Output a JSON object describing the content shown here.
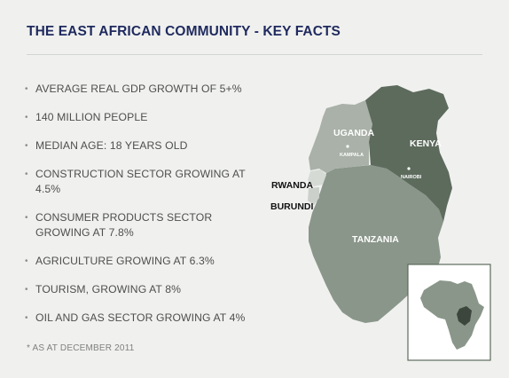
{
  "title": "THE EAST AFRICAN COMMUNITY - KEY FACTS",
  "facts": [
    "AVERAGE REAL GDP GROWTH OF 5+%",
    "140 MILLION PEOPLE",
    "MEDIAN AGE: 18 YEARS OLD",
    "CONSTRUCTION SECTOR GROWING AT 4.5%",
    "CONSUMER PRODUCTS SECTOR GROWING AT 7.8%",
    "AGRICULTURE GROWING AT 6.3%",
    "TOURISM, GROWING AT 8%",
    "OIL AND GAS SECTOR GROWING AT 4%"
  ],
  "note": "* AS AT DECEMBER 2011",
  "map": {
    "countries": {
      "uganda": "UGANDA",
      "kenya": "KENYA",
      "rwanda": "RWANDA",
      "burundi": "BURUNDI",
      "tanzania": "TANZANIA"
    },
    "cities": {
      "kampala": "KAMPALA",
      "nairobi": "NAIROBI"
    },
    "colors": {
      "uganda": "#a9b1a8",
      "kenya": "#5d6b5d",
      "tanzania": "#8a968a",
      "rwanda": "#d6dad5",
      "burundi": "#cbd0ca",
      "inset_bg": "#ffffff",
      "inset_africa": "#8a968a",
      "inset_eac": "#3c463c"
    }
  }
}
